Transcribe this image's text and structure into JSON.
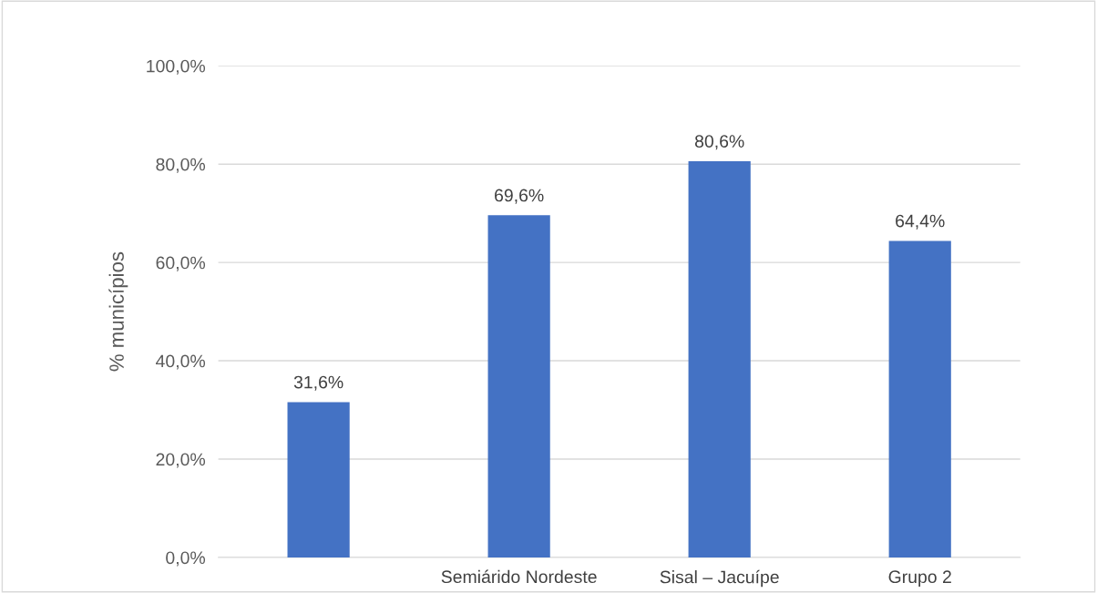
{
  "chart_data": {
    "type": "bar",
    "ylabel": "% municípios",
    "categories": [
      null,
      "Semiárido Nordeste",
      "Sisal – Jacuípe",
      "Grupo 2"
    ],
    "values": [
      31.6,
      69.6,
      80.6,
      64.4
    ],
    "value_labels": [
      "31,6%",
      "69,6%",
      "80,6%",
      "64,4%"
    ],
    "color": "#4472c4",
    "ylim": [
      0,
      100
    ],
    "yticks": [
      {
        "value": 0,
        "label": "0,0%"
      },
      {
        "value": 20,
        "label": "20,0%"
      },
      {
        "value": 40,
        "label": "40,0%"
      },
      {
        "value": 60,
        "label": "60,0%"
      },
      {
        "value": 80,
        "label": "80,0%"
      },
      {
        "value": 100,
        "label": "100,0%"
      }
    ],
    "grid": "y",
    "legend": false
  }
}
